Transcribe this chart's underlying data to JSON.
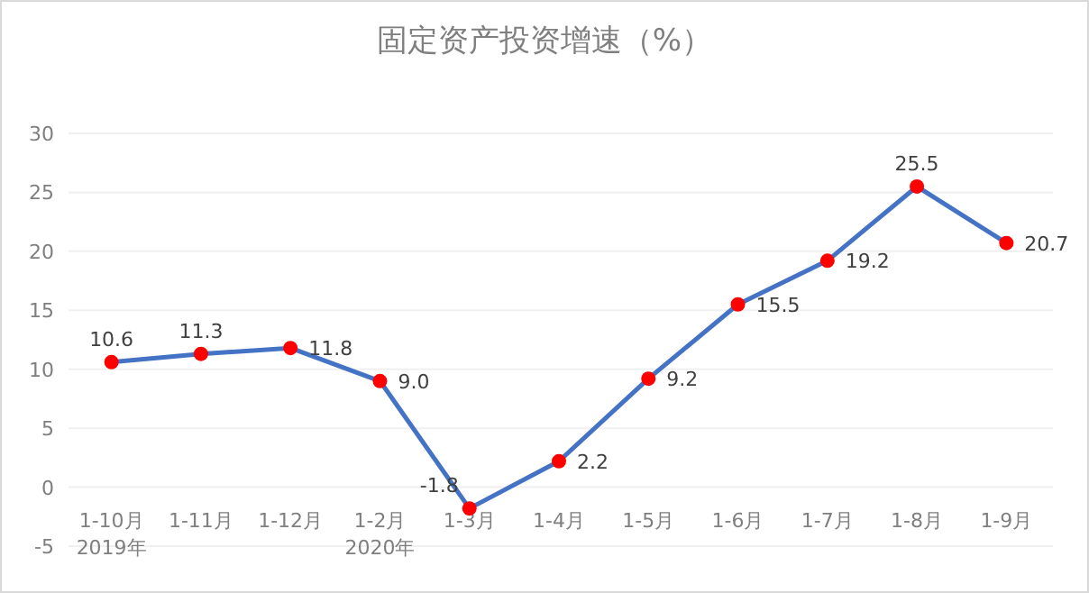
{
  "chart_data": {
    "type": "line",
    "title": "固定资产投资增速（%）",
    "categories": [
      "1-10月\n2019年",
      "1-11月",
      "1-12月",
      "1-2月\n2020年",
      "1-3月",
      "1-4月",
      "1-5月",
      "1-6月",
      "1-7月",
      "1-8月",
      "1-9月"
    ],
    "series": [
      {
        "color": "#4472c4",
        "values": [
          10.6,
          11.3,
          11.8,
          9.0,
          -1.8,
          2.2,
          9.2,
          15.5,
          19.2,
          25.5,
          20.7
        ],
        "colors": [
          "#ff0000",
          "#ff0000",
          "#ff0000",
          "#ff0000",
          "#ff0000",
          "#ff0000",
          "#ff0000",
          "#ff0000",
          "#ff0000",
          "#ff0000",
          "#ff0000"
        ],
        "value_labels": [
          "10.6",
          "11.3",
          "11.8",
          "9.0",
          "-1.8",
          "2.2",
          "9.2",
          "15.5",
          "19.2",
          "25.5",
          "20.7"
        ]
      }
    ],
    "marker": "circle",
    "ylim": [
      -5,
      30
    ],
    "yticks": [
      -5,
      0,
      5,
      10,
      15,
      20,
      25,
      30
    ],
    "grid": "y"
  }
}
